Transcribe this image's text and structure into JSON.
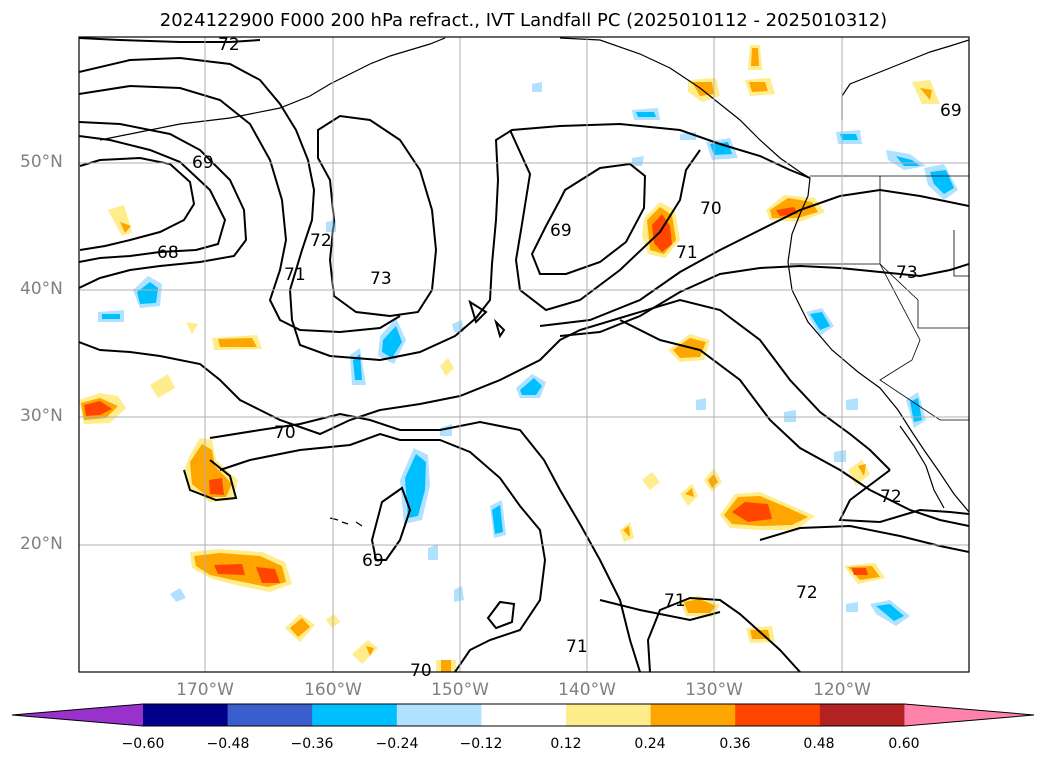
{
  "title": "2024122900 F000 200 hPa refract., IVT Landfall PC (2025010112 - 2025010312)",
  "map": {
    "lat_labels": [
      {
        "value": 50,
        "text": "50°N"
      },
      {
        "value": 40,
        "text": "40°N"
      },
      {
        "value": 30,
        "text": "30°N"
      },
      {
        "value": 20,
        "text": "20°N"
      }
    ],
    "lon_labels": [
      {
        "value": -170,
        "text": "170°W"
      },
      {
        "value": -160,
        "text": "160°W"
      },
      {
        "value": -150,
        "text": "150°W"
      },
      {
        "value": -140,
        "text": "140°W"
      },
      {
        "value": -130,
        "text": "130°W"
      },
      {
        "value": -120,
        "text": "120°W"
      }
    ],
    "contour_labels": [
      "72",
      "69",
      "68",
      "71",
      "72",
      "73",
      "69",
      "70",
      "71",
      "69",
      "73",
      "70",
      "69",
      "71",
      "71",
      "70",
      "72",
      "72"
    ],
    "grid": true
  },
  "colorbar": {
    "colors": [
      "#9932cc",
      "#00008b",
      "#3a5fcd",
      "#00bfff",
      "#b0e2ff",
      "#ffffff",
      "#ffec8b",
      "#ffa500",
      "#ff4500",
      "#b22222",
      "#ff82ab"
    ],
    "ticks": [
      "−0.60",
      "−0.48",
      "−0.36",
      "−0.24",
      "−0.12",
      "0.12",
      "0.24",
      "0.36",
      "0.48",
      "0.60"
    ]
  }
}
